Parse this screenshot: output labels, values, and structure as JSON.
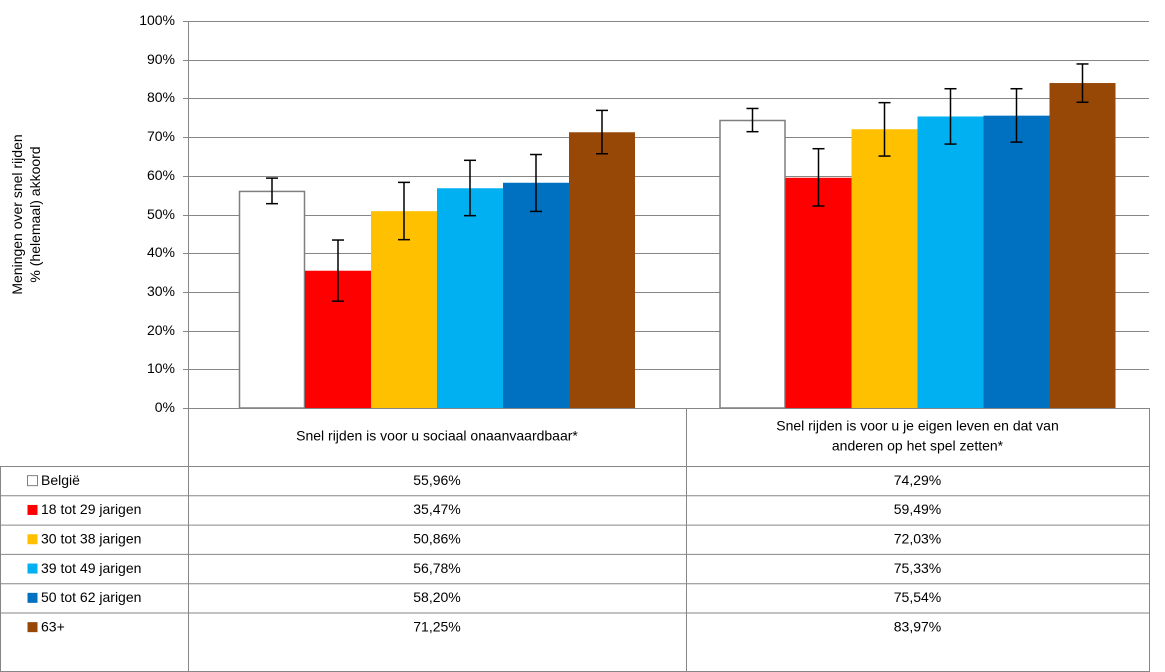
{
  "chart_data": {
    "type": "bar",
    "ylabel_lines": [
      "Meningen over snel rijden",
      "% (helemaal) akkoord"
    ],
    "ylim": [
      0,
      100
    ],
    "y_ticks": [
      "0%",
      "10%",
      "20%",
      "30%",
      "40%",
      "50%",
      "60%",
      "70%",
      "80%",
      "90%",
      "100%"
    ],
    "grid": true,
    "categories": [
      [
        "Snel rijden is voor u sociaal onaanvaardbaar*"
      ],
      [
        "Snel rijden is voor u je eigen leven en dat van",
        "anderen op het spel zetten*"
      ]
    ],
    "series": [
      {
        "name": "België",
        "color": "#ffffff",
        "values": [
          55.96,
          74.29
        ],
        "labels": [
          "55,96%",
          "74,29%"
        ],
        "err_low": [
          52.8,
          71.4
        ],
        "err_high": [
          59.4,
          77.4
        ]
      },
      {
        "name": "18 tot 29 jarigen",
        "color": "#ff0000",
        "values": [
          35.47,
          59.49
        ],
        "labels": [
          "35,47%",
          "59,49%"
        ],
        "err_low": [
          27.6,
          52.2
        ],
        "err_high": [
          43.4,
          67.0
        ]
      },
      {
        "name": "30 tot 38 jarigen",
        "color": "#ffc000",
        "values": [
          50.86,
          72.03
        ],
        "labels": [
          "50,86%",
          "72,03%"
        ],
        "err_low": [
          43.5,
          65.1
        ],
        "err_high": [
          58.3,
          78.9
        ]
      },
      {
        "name": "39 tot 49 jarigen",
        "color": "#00b0f0",
        "values": [
          56.78,
          75.33
        ],
        "labels": [
          "56,78%",
          "75,33%"
        ],
        "err_low": [
          49.7,
          68.2
        ],
        "err_high": [
          64.0,
          82.5
        ]
      },
      {
        "name": "50 tot 62 jarigen",
        "color": "#0070c0",
        "values": [
          58.2,
          75.54
        ],
        "labels": [
          "58,20%",
          "75,54%"
        ],
        "err_low": [
          50.8,
          68.7
        ],
        "err_high": [
          65.5,
          82.5
        ]
      },
      {
        "name": "63+",
        "color": "#974706",
        "values": [
          71.25,
          83.97
        ],
        "labels": [
          "71,25%",
          "83,97%"
        ],
        "err_low": [
          65.7,
          79.0
        ],
        "err_high": [
          76.9,
          88.9
        ]
      }
    ]
  }
}
